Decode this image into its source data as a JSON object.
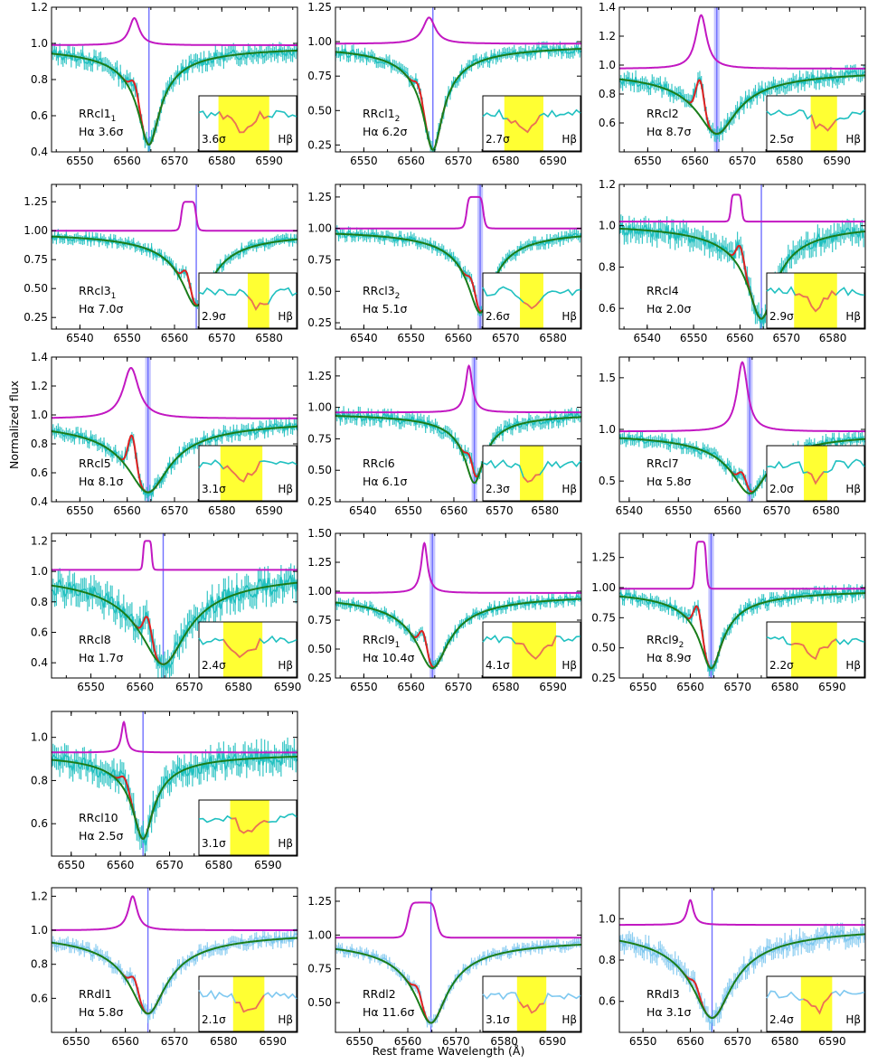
{
  "figure": {
    "ylabel": "Normalized flux",
    "xlabel": "Rest frame Wavelength (Å)",
    "inset_line": "Hβ"
  },
  "chart_data": [
    {
      "type": "line",
      "id": "p1",
      "name": "RRcl1",
      "sub": "1",
      "sigma_main": "Hα 3.6σ",
      "sigma_inset": "3.6σ",
      "xlim": [
        6544,
        6596
      ],
      "ylim": [
        0.4,
        1.2
      ],
      "xticks": [
        6550,
        6560,
        6570,
        6580,
        6590
      ],
      "yticks": [
        0.4,
        0.6,
        0.8,
        1.0,
        1.2
      ],
      "center": 6564.6,
      "band": 0.3,
      "depth": 0.55,
      "width": 2.2,
      "emission": {
        "x": 6561.5,
        "amp": 0.15,
        "w": 1.3,
        "shape": "lorentz"
      },
      "base": 0.99,
      "noise": 0.03,
      "obs_color": "#20c0c0",
      "bump": {
        "x": 6561.5,
        "amp": 0.12
      },
      "inset_band": [
        0.2,
        0.72
      ]
    },
    {
      "type": "line",
      "id": "p2",
      "name": "RRcl1",
      "sub": "2",
      "sigma_main": "Hα 6.2σ",
      "sigma_inset": "2.7σ",
      "xlim": [
        6544,
        6596
      ],
      "ylim": [
        0.2,
        1.25
      ],
      "xticks": [
        6550,
        6560,
        6570,
        6580,
        6590
      ],
      "yticks": [
        0.25,
        0.5,
        0.75,
        1.0,
        1.25
      ],
      "center": 6564.6,
      "band": 0.3,
      "depth": 0.77,
      "width": 2.0,
      "emission": {
        "x": 6563.8,
        "amp": 0.19,
        "w": 1.6,
        "shape": "lorentz"
      },
      "base": 0.985,
      "noise": 0.03,
      "obs_color": "#20c0c0",
      "bump": {
        "x": 6561.5,
        "amp": 0.12
      },
      "inset_band": [
        0.22,
        0.62
      ]
    },
    {
      "type": "line",
      "id": "p3",
      "name": "RRcl2",
      "sub": "",
      "sigma_main": "Hα 8.7σ",
      "sigma_inset": "2.5σ",
      "xlim": [
        6544,
        6596
      ],
      "ylim": [
        0.4,
        1.4
      ],
      "xticks": [
        6550,
        6560,
        6570,
        6580,
        6590
      ],
      "yticks": [
        0.6,
        0.8,
        1.0,
        1.2,
        1.4
      ],
      "center": 6564.6,
      "band": 0.6,
      "depth": 0.45,
      "width": 4.0,
      "emission": {
        "x": 6561.3,
        "amp": 0.37,
        "w": 1.4,
        "shape": "lorentz"
      },
      "base": 0.975,
      "noise": 0.035,
      "obs_color": "#20c0c0",
      "bump": {
        "x": 6561.0,
        "amp": 0.28
      },
      "inset_band": [
        0.45,
        0.72
      ]
    },
    {
      "type": "line",
      "id": "p4",
      "name": "RRcl3",
      "sub": "1",
      "sigma_main": "Hα 7.0σ",
      "sigma_inset": "2.9σ",
      "xlim": [
        6534,
        6586
      ],
      "ylim": [
        0.15,
        1.4
      ],
      "xticks": [
        6540,
        6550,
        6560,
        6570,
        6580
      ],
      "yticks": [
        0.25,
        0.5,
        0.75,
        1.0,
        1.25
      ],
      "center": 6564.6,
      "band": 0.3,
      "depth": 0.65,
      "width": 3.0,
      "emission": {
        "x": 6563.0,
        "amp": 0.25,
        "w": 1.6,
        "shape": "flat"
      },
      "base": 1.0,
      "noise": 0.03,
      "obs_color": "#20c0c0",
      "bump": {
        "x": 6562.5,
        "amp": 0.18
      },
      "inset_band": [
        0.5,
        0.72
      ]
    },
    {
      "type": "line",
      "id": "p5",
      "name": "RRcl3",
      "sub": "2",
      "sigma_main": "Hα 5.1σ",
      "sigma_inset": "2.6σ",
      "xlim": [
        6534,
        6586
      ],
      "ylim": [
        0.2,
        1.35
      ],
      "xticks": [
        6540,
        6550,
        6560,
        6570,
        6580
      ],
      "yticks": [
        0.25,
        0.5,
        0.75,
        1.0,
        1.25
      ],
      "center": 6564.6,
      "band": 0.6,
      "depth": 0.67,
      "width": 2.5,
      "emission": {
        "x": 6563.5,
        "amp": 0.25,
        "w": 1.8,
        "shape": "flat"
      },
      "base": 1.0,
      "noise": 0.03,
      "obs_color": "#20c0c0",
      "bump": {
        "x": 6562.8,
        "amp": 0.13
      },
      "inset_band": [
        0.38,
        0.62
      ]
    },
    {
      "type": "line",
      "id": "p6",
      "name": "RRcl4",
      "sub": "",
      "sigma_main": "Hα 2.0σ",
      "sigma_inset": "2.9σ",
      "xlim": [
        6534,
        6587
      ],
      "ylim": [
        0.5,
        1.2
      ],
      "xticks": [
        6540,
        6550,
        6560,
        6570,
        6580
      ],
      "yticks": [
        0.6,
        0.8,
        1.0,
        1.2
      ],
      "center": 6564.6,
      "band": 0.3,
      "depth": 0.47,
      "width": 2.8,
      "emission": {
        "x": 6559.2,
        "amp": 0.13,
        "w": 1.2,
        "shape": "flat"
      },
      "base": 1.02,
      "noise": 0.035,
      "obs_color": "#20c0c0",
      "bump": {
        "x": 6560.0,
        "amp": 0.15
      },
      "inset_band": [
        0.28,
        0.72
      ]
    },
    {
      "type": "line",
      "id": "p7",
      "name": "RRcl5",
      "sub": "",
      "sigma_main": "Hα 8.1σ",
      "sigma_inset": "3.1σ",
      "xlim": [
        6544,
        6596
      ],
      "ylim": [
        0.4,
        1.4
      ],
      "xticks": [
        6550,
        6560,
        6570,
        6580,
        6590
      ],
      "yticks": [
        0.4,
        0.6,
        0.8,
        1.0,
        1.2,
        1.4
      ],
      "center": 6564.4,
      "band": 0.6,
      "depth": 0.51,
      "width": 4.2,
      "emission": {
        "x": 6560.8,
        "amp": 0.35,
        "w": 2.0,
        "shape": "lorentz"
      },
      "base": 0.975,
      "noise": 0.03,
      "obs_color": "#20c0c0",
      "bump": {
        "x": 6561.0,
        "amp": 0.3
      },
      "inset_band": [
        0.22,
        0.65
      ]
    },
    {
      "type": "line",
      "id": "p8",
      "name": "RRcl6",
      "sub": "",
      "sigma_main": "Hα 6.1σ",
      "sigma_inset": "2.3σ",
      "xlim": [
        6534,
        6588
      ],
      "ylim": [
        0.25,
        1.4
      ],
      "xticks": [
        6540,
        6550,
        6560,
        6570,
        6580
      ],
      "yticks": [
        0.25,
        0.5,
        0.75,
        1.0,
        1.25
      ],
      "center": 6564.5,
      "band": 0.6,
      "depth": 0.56,
      "width": 2.0,
      "emission": {
        "x": 6563.3,
        "amp": 0.37,
        "w": 0.9,
        "shape": "lorentz"
      },
      "base": 0.96,
      "noise": 0.035,
      "obs_color": "#20c0c0",
      "bump": {
        "x": 6563.5,
        "amp": 0.15
      },
      "inset_band": [
        0.38,
        0.62
      ]
    },
    {
      "type": "line",
      "id": "p9",
      "name": "RRcl7",
      "sub": "",
      "sigma_main": "Hα 5.8σ",
      "sigma_inset": "2.0σ",
      "xlim": [
        6538,
        6588
      ],
      "ylim": [
        0.3,
        1.7
      ],
      "xticks": [
        6540,
        6550,
        6560,
        6570,
        6580
      ],
      "yticks": [
        0.5,
        1.0,
        1.5
      ],
      "center": 6564.5,
      "band": 0.6,
      "depth": 0.6,
      "width": 3.5,
      "emission": {
        "x": 6563.0,
        "amp": 0.67,
        "w": 1.3,
        "shape": "lorentz"
      },
      "base": 0.98,
      "noise": 0.04,
      "obs_color": "#20c0c0",
      "bump": {
        "x": 6563.0,
        "amp": 0.15
      },
      "inset_band": [
        0.38,
        0.62
      ]
    },
    {
      "type": "line",
      "id": "p10",
      "name": "RRcl8",
      "sub": "",
      "sigma_main": "Hα 1.7σ",
      "sigma_inset": "2.4σ",
      "xlim": [
        6542,
        6592
      ],
      "ylim": [
        0.3,
        1.25
      ],
      "xticks": [
        6550,
        6560,
        6570,
        6580,
        6590
      ],
      "yticks": [
        0.4,
        0.6,
        0.8,
        1.0,
        1.2
      ],
      "center": 6564.7,
      "band": 0.3,
      "depth": 0.62,
      "width": 4.5,
      "emission": {
        "x": 6561.5,
        "amp": 0.19,
        "w": 0.9,
        "shape": "flat"
      },
      "base": 1.01,
      "noise": 0.06,
      "obs_color": "#20c0c0",
      "bump": {
        "x": 6561.5,
        "amp": 0.2
      },
      "inset_band": [
        0.25,
        0.65
      ]
    },
    {
      "type": "line",
      "id": "p11",
      "name": "RRcl9",
      "sub": "1",
      "sigma_main": "Hα 10.4σ",
      "sigma_inset": "4.1σ",
      "xlim": [
        6544,
        6596
      ],
      "ylim": [
        0.25,
        1.5
      ],
      "xticks": [
        6550,
        6560,
        6570,
        6580,
        6590
      ],
      "yticks": [
        0.25,
        0.5,
        0.75,
        1.0,
        1.25,
        1.5
      ],
      "center": 6564.5,
      "band": 0.6,
      "depth": 0.65,
      "width": 3.2,
      "emission": {
        "x": 6562.8,
        "amp": 0.43,
        "w": 0.8,
        "shape": "lorentz"
      },
      "base": 0.985,
      "noise": 0.03,
      "obs_color": "#20c0c0",
      "bump": {
        "x": 6562.5,
        "amp": 0.22
      },
      "inset_band": [
        0.3,
        0.75
      ]
    },
    {
      "type": "line",
      "id": "p12",
      "name": "RRcl9",
      "sub": "2",
      "sigma_main": "Hα 8.9σ",
      "sigma_inset": "2.2σ",
      "xlim": [
        6545,
        6597
      ],
      "ylim": [
        0.25,
        1.45
      ],
      "xticks": [
        6550,
        6560,
        6570,
        6580,
        6590
      ],
      "yticks": [
        0.25,
        0.5,
        0.75,
        1.0,
        1.25
      ],
      "center": 6564.4,
      "band": 0.6,
      "depth": 0.66,
      "width": 2.3,
      "emission": {
        "x": 6562.2,
        "amp": 0.39,
        "w": 1.2,
        "shape": "flat"
      },
      "base": 0.99,
      "noise": 0.035,
      "obs_color": "#20c0c0",
      "bump": {
        "x": 6561.5,
        "amp": 0.3
      },
      "inset_band": [
        0.25,
        0.72
      ]
    },
    {
      "type": "line",
      "id": "p13",
      "name": "RRcl10",
      "sub": "",
      "sigma_main": "Hα 2.5σ",
      "sigma_inset": "3.1σ",
      "xlim": [
        6546,
        6596
      ],
      "ylim": [
        0.45,
        1.12
      ],
      "xticks": [
        6550,
        6560,
        6570,
        6580,
        6590
      ],
      "yticks": [
        0.6,
        0.8,
        1.0
      ],
      "center": 6564.6,
      "band": 0.3,
      "depth": 0.4,
      "width": 2.0,
      "emission": {
        "x": 6560.7,
        "amp": 0.14,
        "w": 0.6,
        "shape": "lorentz"
      },
      "base": 0.93,
      "noise": 0.04,
      "obs_color": "#20c0c0",
      "bump": {
        "x": 6560.8,
        "amp": 0.08
      },
      "inset_band": [
        0.32,
        0.72
      ]
    },
    {
      "type": "line",
      "id": "p14",
      "name": "RRdl1",
      "sub": "",
      "sigma_main": "Hα 5.8σ",
      "sigma_inset": "2.1σ",
      "xlim": [
        6545,
        6595
      ],
      "ylim": [
        0.4,
        1.25
      ],
      "xticks": [
        6550,
        6560,
        6570,
        6580,
        6590
      ],
      "yticks": [
        0.6,
        0.8,
        1.0,
        1.2
      ],
      "center": 6564.6,
      "band": 0.3,
      "depth": 0.49,
      "width": 3.5,
      "emission": {
        "x": 6561.5,
        "amp": 0.2,
        "w": 1.1,
        "shape": "lorentz"
      },
      "base": 1.0,
      "noise": 0.025,
      "obs_color": "#7ec8f0",
      "bump": {
        "x": 6561.8,
        "amp": 0.1
      },
      "inset_band": [
        0.35,
        0.67
      ]
    },
    {
      "type": "line",
      "id": "p15",
      "name": "RRdl2",
      "sub": "",
      "sigma_main": "Hα 11.6σ",
      "sigma_inset": "3.1σ",
      "xlim": [
        6545,
        6596
      ],
      "ylim": [
        0.28,
        1.35
      ],
      "xticks": [
        6550,
        6560,
        6570,
        6580,
        6590
      ],
      "yticks": [
        0.5,
        0.75,
        1.0,
        1.25
      ],
      "center": 6564.8,
      "band": 0.3,
      "depth": 0.63,
      "width": 3.2,
      "emission": {
        "x": 6563.0,
        "amp": 0.26,
        "w": 3.0,
        "shape": "flat"
      },
      "base": 0.98,
      "noise": 0.025,
      "obs_color": "#7ec8f0",
      "bump": {
        "x": 6562.0,
        "amp": 0.1
      },
      "inset_band": [
        0.35,
        0.65
      ]
    },
    {
      "type": "line",
      "id": "p16",
      "name": "RRdl3",
      "sub": "",
      "sigma_main": "Hα 3.1σ",
      "sigma_inset": "2.4σ",
      "xlim": [
        6545,
        6597
      ],
      "ylim": [
        0.45,
        1.15
      ],
      "xticks": [
        6550,
        6560,
        6570,
        6580,
        6590
      ],
      "yticks": [
        0.6,
        0.8,
        1.0
      ],
      "center": 6564.6,
      "band": 0.3,
      "depth": 0.45,
      "width": 4.0,
      "emission": {
        "x": 6560.0,
        "amp": 0.12,
        "w": 0.8,
        "shape": "lorentz"
      },
      "base": 0.97,
      "noise": 0.03,
      "obs_color": "#7ec8f0",
      "bump": {
        "x": 6561.0,
        "amp": 0.05
      },
      "inset_band": [
        0.35,
        0.67
      ]
    }
  ]
}
